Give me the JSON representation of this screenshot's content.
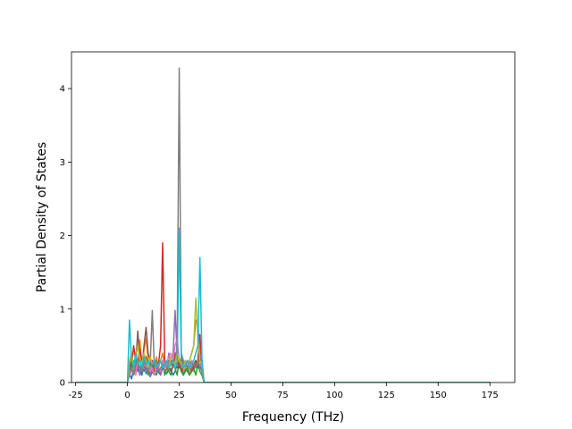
{
  "chart_data": {
    "type": "line",
    "title": "",
    "xlabel": "Frequency (THz)",
    "ylabel": "Partial Density of States",
    "xlim": [
      -27,
      187
    ],
    "ylim": [
      0,
      4.5
    ],
    "x_ticks": [
      -25,
      0,
      25,
      50,
      75,
      100,
      125,
      150,
      175
    ],
    "y_ticks": [
      0,
      1,
      2,
      3,
      4
    ],
    "grid": false,
    "legend": "none",
    "series": [
      {
        "color": "#1f77b4",
        "x": [
          -25,
          0,
          1,
          2,
          3,
          4,
          5,
          6,
          7,
          8,
          9,
          10,
          11,
          12,
          13,
          14,
          15,
          16,
          17,
          18,
          19,
          20,
          21,
          22,
          23,
          24,
          25,
          26,
          27,
          28,
          29,
          30,
          31,
          32,
          33,
          34,
          35,
          36,
          37,
          38,
          175
        ],
        "y": [
          0,
          0,
          0.12,
          0.05,
          0.18,
          0.3,
          0.15,
          0.22,
          0.1,
          0.28,
          0.12,
          0.2,
          0.08,
          0.15,
          0.1,
          0.22,
          0.14,
          0.1,
          0.2,
          0.15,
          0.12,
          0.2,
          0.18,
          0.1,
          0.15,
          0.25,
          0.3,
          0.15,
          0.1,
          0.2,
          0.15,
          0.1,
          0.2,
          0.25,
          0.3,
          0.2,
          0.35,
          0.2,
          0,
          0,
          0
        ]
      },
      {
        "color": "#ff7f0e",
        "x": [
          -25,
          0,
          1,
          2,
          3,
          4,
          5,
          6,
          7,
          8,
          9,
          10,
          11,
          12,
          13,
          14,
          15,
          16,
          17,
          18,
          19,
          20,
          21,
          22,
          23,
          24,
          25,
          26,
          27,
          28,
          29,
          30,
          31,
          32,
          33,
          34,
          35,
          36,
          37,
          38,
          175
        ],
        "y": [
          0,
          0,
          0.2,
          0.35,
          0.15,
          0.4,
          0.25,
          0.58,
          0.2,
          0.45,
          0.6,
          0.3,
          0.2,
          0.15,
          0.2,
          0.35,
          0.2,
          0.3,
          0.4,
          0.2,
          0.25,
          0.15,
          0.3,
          0.2,
          0.35,
          0.4,
          0.2,
          0.3,
          0.15,
          0.2,
          0.25,
          0.1,
          0.2,
          0.15,
          0.3,
          0.2,
          0.25,
          0.15,
          0,
          0,
          0
        ]
      },
      {
        "color": "#2ca02c",
        "x": [
          -25,
          0,
          1,
          2,
          3,
          4,
          5,
          6,
          7,
          8,
          9,
          10,
          11,
          12,
          13,
          14,
          15,
          16,
          17,
          18,
          19,
          20,
          21,
          22,
          23,
          24,
          25,
          26,
          27,
          28,
          29,
          30,
          31,
          32,
          33,
          34,
          35,
          36,
          37,
          38,
          175
        ],
        "y": [
          0,
          0,
          0.1,
          0.25,
          0.15,
          0.2,
          0.3,
          0.1,
          0.22,
          0.15,
          0.3,
          0.1,
          0.2,
          0.25,
          0.15,
          0.1,
          0.2,
          0.15,
          0.3,
          0.1,
          0.2,
          0.15,
          0.1,
          0.25,
          0.2,
          0.1,
          0.3,
          0.2,
          0.1,
          0.15,
          0.2,
          0.1,
          0.15,
          0.2,
          0.1,
          0.25,
          0.15,
          0.1,
          0,
          0,
          0
        ]
      },
      {
        "color": "#d62728",
        "x": [
          -25,
          0,
          1,
          2,
          3,
          4,
          5,
          6,
          7,
          8,
          9,
          10,
          11,
          12,
          13,
          14,
          15,
          16,
          17,
          18,
          19,
          20,
          21,
          22,
          23,
          24,
          25,
          26,
          27,
          28,
          29,
          30,
          31,
          32,
          33,
          34,
          35,
          36,
          37,
          38,
          175
        ],
        "y": [
          0,
          0,
          0.15,
          0.2,
          0.5,
          0.3,
          0.2,
          0.45,
          0.3,
          0.2,
          0.35,
          0.25,
          0.2,
          0.3,
          0.15,
          0.2,
          0.25,
          0.5,
          1.9,
          0.3,
          0.2,
          0.25,
          0.3,
          0.2,
          0.4,
          0.3,
          0.2,
          0.35,
          0.2,
          0.3,
          0.25,
          0.2,
          0.3,
          0.2,
          0.25,
          0.3,
          0.65,
          0.2,
          0,
          0,
          0
        ]
      },
      {
        "color": "#9467bd",
        "x": [
          -25,
          0,
          1,
          2,
          3,
          4,
          5,
          6,
          7,
          8,
          9,
          10,
          11,
          12,
          13,
          14,
          15,
          16,
          17,
          18,
          19,
          20,
          21,
          22,
          23,
          24,
          25,
          26,
          27,
          28,
          29,
          30,
          31,
          32,
          33,
          34,
          35,
          36,
          37,
          38,
          175
        ],
        "y": [
          0,
          0,
          0.1,
          0.2,
          0.3,
          0.15,
          0.25,
          0.1,
          0.3,
          0.2,
          0.15,
          0.25,
          0.1,
          0.2,
          0.3,
          0.15,
          0.2,
          0.1,
          0.25,
          0.3,
          0.2,
          0.4,
          0.25,
          0.35,
          0.98,
          0.4,
          0.3,
          0.2,
          0.25,
          0.3,
          0.2,
          0.3,
          0.4,
          0.5,
          0.85,
          0.8,
          0.4,
          0.3,
          0,
          0,
          0
        ]
      },
      {
        "color": "#8c564b",
        "x": [
          -25,
          0,
          1,
          2,
          3,
          4,
          5,
          6,
          7,
          8,
          9,
          10,
          11,
          12,
          13,
          14,
          15,
          16,
          17,
          18,
          19,
          20,
          21,
          22,
          23,
          24,
          25,
          26,
          27,
          28,
          29,
          30,
          31,
          32,
          33,
          34,
          35,
          36,
          37,
          38,
          175
        ],
        "y": [
          0,
          0,
          0.2,
          0.3,
          0.15,
          0.25,
          0.7,
          0.3,
          0.2,
          0.5,
          0.75,
          0.4,
          0.3,
          0.2,
          0.25,
          0.3,
          0.2,
          0.15,
          0.25,
          0.2,
          0.3,
          0.2,
          0.15,
          0.25,
          0.3,
          0.2,
          0.25,
          0.15,
          0.2,
          0.3,
          0.25,
          0.2,
          0.15,
          0.25,
          0.3,
          0.2,
          0.25,
          0.15,
          0,
          0,
          0
        ]
      },
      {
        "color": "#e377c2",
        "x": [
          -25,
          0,
          1,
          2,
          3,
          4,
          5,
          6,
          7,
          8,
          9,
          10,
          11,
          12,
          13,
          14,
          15,
          16,
          17,
          18,
          19,
          20,
          21,
          22,
          23,
          24,
          25,
          26,
          27,
          28,
          29,
          30,
          31,
          32,
          33,
          34,
          35,
          36,
          37,
          38,
          175
        ],
        "y": [
          0,
          0,
          0.1,
          0.15,
          0.2,
          0.1,
          0.3,
          0.2,
          0.15,
          0.25,
          0.2,
          0.3,
          0.15,
          0.2,
          0.1,
          0.25,
          0.2,
          0.15,
          0.3,
          0.2,
          0.25,
          0.35,
          0.4,
          0.3,
          0.5,
          0.6,
          0.3,
          0.25,
          0.2,
          0.3,
          0.25,
          0.2,
          0.3,
          0.25,
          0.2,
          0.3,
          0.25,
          0.2,
          0,
          0,
          0
        ]
      },
      {
        "color": "#7f7f7f",
        "x": [
          -25,
          0,
          1,
          2,
          3,
          4,
          5,
          6,
          7,
          8,
          9,
          10,
          11,
          12,
          13,
          14,
          15,
          16,
          17,
          18,
          19,
          20,
          21,
          22,
          23,
          24,
          25,
          26,
          27,
          28,
          29,
          30,
          31,
          32,
          33,
          34,
          35,
          36,
          37,
          38,
          175
        ],
        "y": [
          0,
          0,
          0.15,
          0.2,
          0.1,
          0.25,
          0.3,
          0.2,
          0.15,
          0.3,
          0.2,
          0.15,
          0.25,
          0.98,
          0.2,
          0.3,
          0.15,
          0.2,
          0.25,
          0.15,
          0.2,
          0.3,
          0.25,
          0.2,
          0.3,
          0.5,
          4.28,
          0.4,
          0.3,
          0.2,
          0.25,
          0.3,
          0.2,
          0.25,
          0.2,
          0.3,
          0.2,
          0.15,
          0,
          0,
          0
        ]
      },
      {
        "color": "#bcbd22",
        "x": [
          -25,
          0,
          1,
          2,
          3,
          4,
          5,
          6,
          7,
          8,
          9,
          10,
          11,
          12,
          13,
          14,
          15,
          16,
          17,
          18,
          19,
          20,
          21,
          22,
          23,
          24,
          25,
          26,
          27,
          28,
          29,
          30,
          31,
          32,
          33,
          34,
          35,
          36,
          37,
          38,
          175
        ],
        "y": [
          0,
          0,
          0.3,
          0.4,
          0.2,
          0.35,
          0.5,
          0.3,
          0.25,
          0.4,
          0.3,
          0.2,
          0.35,
          0.25,
          0.3,
          0.2,
          0.25,
          0.3,
          0.2,
          0.25,
          0.3,
          0.2,
          0.35,
          0.3,
          0.25,
          0.4,
          0.3,
          0.25,
          0.2,
          0.3,
          0.25,
          0.3,
          0.4,
          0.5,
          1.15,
          0.6,
          0.3,
          0.25,
          0,
          0,
          0
        ]
      },
      {
        "color": "#17becf",
        "x": [
          -25,
          0,
          1,
          2,
          3,
          4,
          5,
          6,
          7,
          8,
          9,
          10,
          11,
          12,
          13,
          14,
          15,
          16,
          17,
          18,
          19,
          20,
          21,
          22,
          23,
          24,
          25,
          26,
          27,
          28,
          29,
          30,
          31,
          32,
          33,
          34,
          35,
          36,
          37,
          38,
          175
        ],
        "y": [
          0,
          0,
          0.85,
          0.3,
          0.2,
          0.4,
          0.25,
          0.3,
          0.2,
          0.35,
          0.25,
          0.3,
          0.2,
          0.25,
          0.3,
          0.2,
          0.25,
          0.3,
          0.2,
          0.25,
          0.3,
          0.2,
          0.25,
          0.3,
          0.2,
          0.25,
          2.1,
          0.3,
          0.2,
          0.25,
          0.3,
          0.2,
          0.25,
          0.3,
          0.4,
          0.5,
          1.7,
          0.3,
          0,
          0,
          0
        ]
      }
    ]
  }
}
